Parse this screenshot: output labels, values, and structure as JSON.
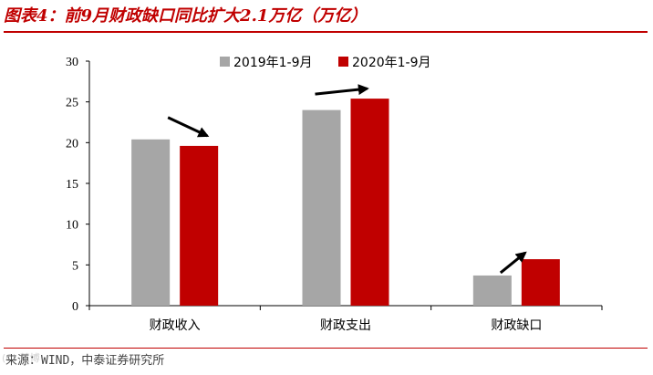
{
  "title": "图表4：前9月财政缺口同比扩大2.1万亿（万亿）",
  "source": "来源：WIND，中泰证券研究所",
  "watermark": "(C) 慧博",
  "colors": {
    "brand": "#c00000",
    "series_2019": "#a6a6a6",
    "series_2020": "#c00000"
  },
  "chart_data": {
    "type": "bar",
    "categories": [
      "财政收入",
      "财政支出",
      "财政缺口"
    ],
    "series": [
      {
        "name": "2019年1-9月",
        "values": [
          20.4,
          24.0,
          3.7
        ],
        "color": "#a6a6a6"
      },
      {
        "name": "2020年1-9月",
        "values": [
          19.6,
          25.4,
          5.7
        ],
        "color": "#c00000"
      }
    ],
    "ylim": [
      0,
      30
    ],
    "yticks": [
      "0",
      "5",
      "10",
      "15",
      "20",
      "25",
      "30"
    ],
    "legend": "top",
    "grid": false,
    "annotations": [
      "arrow-down",
      "arrow-up",
      "arrow-up"
    ]
  }
}
